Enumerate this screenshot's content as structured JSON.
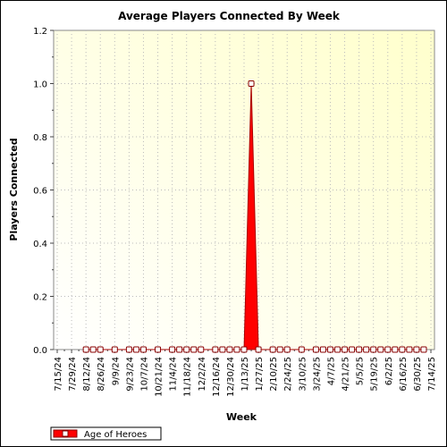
{
  "chart_data": {
    "type": "area",
    "title": "Average Players Connected By Week",
    "xlabel": "Week",
    "ylabel": "Players Connected",
    "ylim": [
      0,
      1.2
    ],
    "yticks": [
      "0.0",
      "0.2",
      "0.4",
      "0.6",
      "0.8",
      "1.0",
      "1.2"
    ],
    "grid": true,
    "legend_position": "bottom-left",
    "categories": [
      "7/15/24",
      "7/29/24",
      "8/12/24",
      "8/26/24",
      "9/9/24",
      "9/23/24",
      "10/7/24",
      "10/21/24",
      "11/4/24",
      "11/18/24",
      "12/2/24",
      "12/16/24",
      "12/30/24",
      "1/13/25",
      "1/27/25",
      "2/10/25",
      "2/24/25",
      "3/10/25",
      "3/24/25",
      "4/7/25",
      "4/21/25",
      "5/5/25",
      "5/19/25",
      "6/2/25",
      "6/16/25",
      "6/30/25",
      "7/14/25"
    ],
    "series": [
      {
        "name": "Age of Heroes",
        "color": "#ff0000",
        "x": [
          "8/12/24",
          "8/19/24",
          "8/26/24",
          "9/9/24",
          "9/23/24",
          "9/30/24",
          "10/7/24",
          "10/21/24",
          "11/4/24",
          "11/11/24",
          "11/18/24",
          "11/25/24",
          "12/2/24",
          "12/16/24",
          "12/23/24",
          "12/30/24",
          "1/6/25",
          "1/13/25",
          "1/20/25",
          "1/27/25",
          "2/10/25",
          "2/17/25",
          "2/24/25",
          "3/10/25",
          "3/24/25",
          "3/31/25",
          "4/7/25",
          "4/14/25",
          "4/21/25",
          "4/28/25",
          "5/5/25",
          "5/12/25",
          "5/19/25",
          "5/26/25",
          "6/2/25",
          "6/9/25",
          "6/16/25",
          "6/23/25",
          "6/30/25",
          "7/7/25"
        ],
        "values": [
          0,
          0,
          0,
          0,
          0,
          0,
          0,
          0,
          0,
          0,
          0,
          0,
          0,
          0,
          0,
          0,
          0,
          0,
          1.0,
          0,
          0,
          0,
          0,
          0,
          0,
          0,
          0,
          0,
          0,
          0,
          0,
          0,
          0,
          0,
          0,
          0,
          0,
          0,
          0,
          0
        ]
      }
    ]
  }
}
